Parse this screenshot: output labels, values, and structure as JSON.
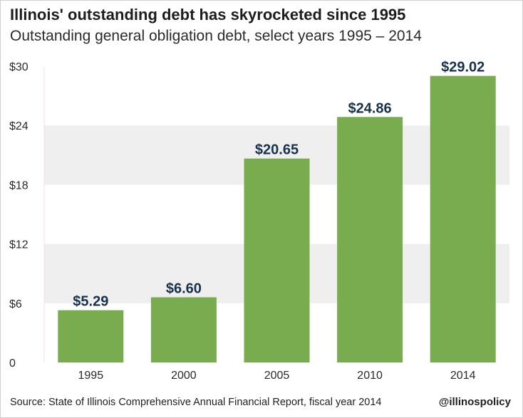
{
  "header": {
    "title": "Illinois' outstanding debt has skyrocketed since 1995",
    "subtitle": "Outstanding general obligation debt, select years 1995 – 2014"
  },
  "footer": {
    "source": "Source: State of Illinois Comprehensive Annual Financial Report, fiscal year 2014",
    "handle": "@illinospolicy"
  },
  "colors": {
    "bar": "#79ab4f",
    "label": "#17324d",
    "band": "#efefef"
  },
  "chart_data": {
    "type": "bar",
    "title": "Illinois' outstanding debt has skyrocketed since 1995",
    "subtitle": "Outstanding general obligation debt, select years 1995 – 2014",
    "categories": [
      "1995",
      "2000",
      "2005",
      "2010",
      "2014"
    ],
    "values": [
      5.29,
      6.6,
      20.65,
      24.86,
      29.02
    ],
    "data_labels": [
      "$5.29",
      "$6.60",
      "$20.65",
      "$24.86",
      "$29.02"
    ],
    "y_ticks": [
      0,
      6,
      12,
      18,
      24,
      30
    ],
    "y_tick_labels": [
      "0",
      "$6",
      "$12",
      "$18",
      "$24",
      "$30"
    ],
    "ylim": [
      0,
      30
    ],
    "xlabel": "",
    "ylabel": "",
    "grid": "alternating horizontal bands",
    "legend": "none"
  }
}
